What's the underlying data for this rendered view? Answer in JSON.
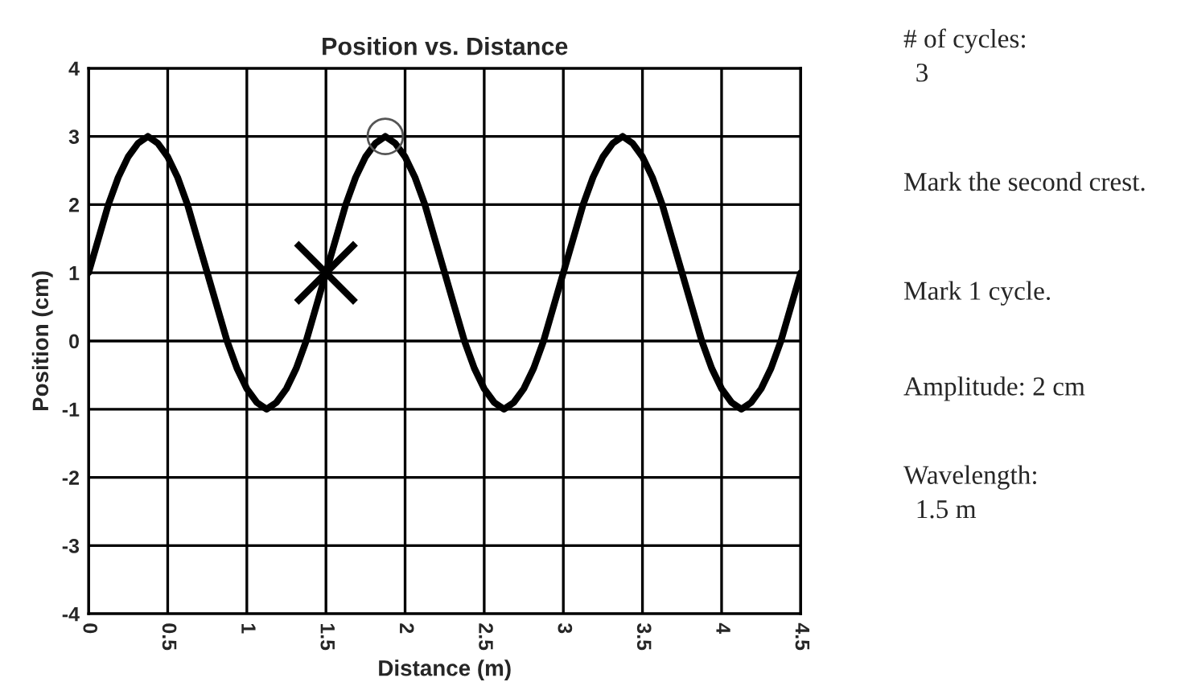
{
  "chart_data": {
    "type": "line",
    "title": "Position vs. Distance",
    "xlabel": "Distance (m)",
    "ylabel": "Position (cm)",
    "xlim": [
      0,
      4.5
    ],
    "xticks": [
      0,
      0.5,
      1,
      1.5,
      2,
      2.5,
      3,
      3.5,
      4,
      4.5
    ],
    "ylim": [
      -4,
      4
    ],
    "yticks": [
      -4,
      -3,
      -2,
      -1,
      0,
      1,
      2,
      3,
      4
    ],
    "grid": true,
    "marker": "none",
    "line_style": "solid",
    "x": [
      0,
      0.0625,
      0.125,
      0.1875,
      0.25,
      0.3125,
      0.375,
      0.4375,
      0.5,
      0.5625,
      0.625,
      0.6875,
      0.75,
      0.8125,
      0.875,
      0.9375,
      1,
      1.0625,
      1.125,
      1.1875,
      1.25,
      1.3125,
      1.375,
      1.4375,
      1.5,
      1.5625,
      1.625,
      1.6875,
      1.75,
      1.8125,
      1.875,
      1.9375,
      2,
      2.0625,
      2.125,
      2.1875,
      2.25,
      2.3125,
      2.375,
      2.4375,
      2.5,
      2.5625,
      2.625,
      2.6875,
      2.75,
      2.8125,
      2.875,
      2.9375,
      3,
      3.0625,
      3.125,
      3.1875,
      3.25,
      3.3125,
      3.375,
      3.4375,
      3.5,
      3.5625,
      3.625,
      3.6875,
      3.75,
      3.8125,
      3.875,
      3.9375,
      4,
      4.0625,
      4.125,
      4.1875,
      4.25,
      4.3125,
      4.375,
      4.4375,
      4.5
    ],
    "series": [
      {
        "color": "#000000",
        "values": [
          1,
          1.5,
          2,
          2.4,
          2.7,
          2.9,
          3,
          2.9,
          2.7,
          2.4,
          2,
          1.5,
          1,
          0.5,
          0,
          -0.4,
          -0.7,
          -0.9,
          -1,
          -0.9,
          -0.7,
          -0.4,
          0,
          0.5,
          1,
          1.5,
          2,
          2.4,
          2.7,
          2.9,
          3,
          2.9,
          2.7,
          2.4,
          2,
          1.5,
          1,
          0.5,
          0,
          -0.4,
          -0.7,
          -0.9,
          -1,
          -0.9,
          -0.7,
          -0.4,
          0,
          0.5,
          1,
          1.5,
          2,
          2.4,
          2.7,
          2.9,
          3,
          2.9,
          2.7,
          2.4,
          2,
          1.5,
          1,
          0.5,
          0,
          -0.4,
          -0.7,
          -0.9,
          -1,
          -0.9,
          -0.7,
          -0.4,
          0,
          0.5,
          1
        ]
      },
      {
        "type": "scatter",
        "marker": "circle",
        "color": "#555555",
        "x": [
          1.875
        ],
        "values": [
          3
        ]
      },
      {
        "type": "scatter",
        "marker": "cross",
        "color": "#000000",
        "x": [
          1.5
        ],
        "values": [
          1
        ]
      }
    ],
    "annotations": [
      "# of cycles:",
      "3",
      "Mark the second crest.",
      "Mark 1 cycle.",
      "Amplitude: 2 cm",
      "Wavelength:",
      "1.5 m"
    ]
  }
}
